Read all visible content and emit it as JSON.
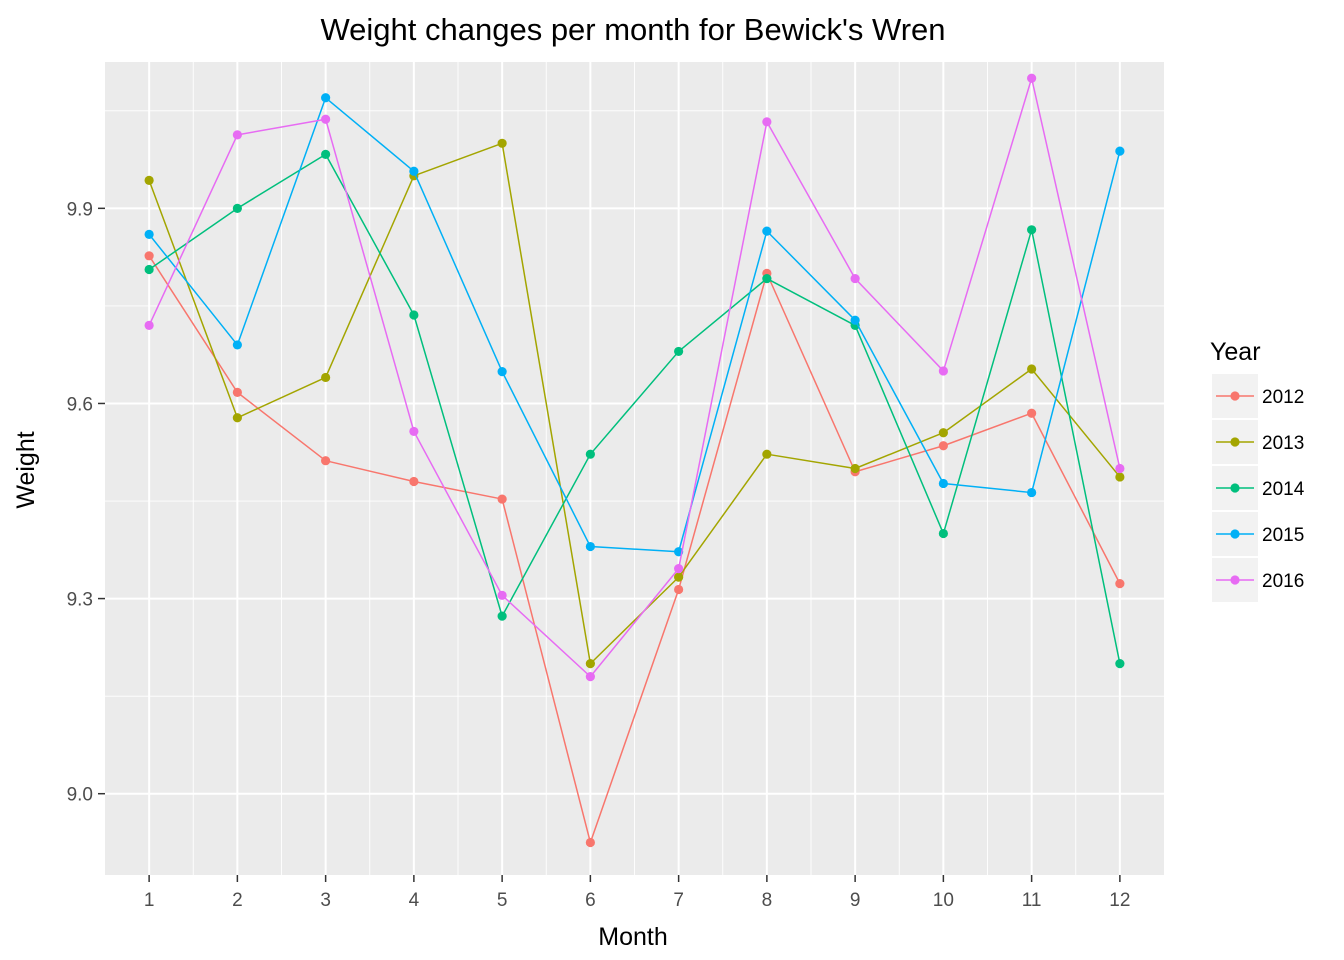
{
  "chart_data": {
    "type": "line",
    "title": "Weight changes per month for Bewick's Wren",
    "xlabel": "Month",
    "ylabel": "Weight",
    "x": [
      1,
      2,
      3,
      4,
      5,
      6,
      7,
      8,
      9,
      10,
      11,
      12
    ],
    "xticks": [
      "1",
      "2",
      "3",
      "4",
      "5",
      "6",
      "7",
      "8",
      "9",
      "10",
      "11",
      "12"
    ],
    "yticks": [
      9.0,
      9.3,
      9.6,
      9.9
    ],
    "ytick_labels": [
      "9.0",
      "9.3",
      "9.6",
      "9.9"
    ],
    "xlim": [
      0.5,
      12.5
    ],
    "ylim": [
      8.875,
      10.125
    ],
    "grid": true,
    "legend_title": "Year",
    "legend_position": "right",
    "series": [
      {
        "name": "2012",
        "color": "#F8766D",
        "values": [
          9.827,
          9.617,
          9.512,
          9.48,
          9.453,
          8.925,
          9.314,
          9.8,
          9.495,
          9.535,
          9.585,
          9.323
        ]
      },
      {
        "name": "2013",
        "color": "#A3A500",
        "values": [
          9.943,
          9.578,
          9.64,
          9.95,
          10.0,
          9.2,
          9.333,
          9.522,
          9.5,
          9.555,
          9.653,
          9.487
        ]
      },
      {
        "name": "2014",
        "color": "#00BF7D",
        "values": [
          9.806,
          9.9,
          9.983,
          9.736,
          9.273,
          9.522,
          9.68,
          9.792,
          9.72,
          9.4,
          9.867,
          9.2
        ]
      },
      {
        "name": "2015",
        "color": "#00B0F6",
        "values": [
          9.86,
          9.69,
          10.07,
          9.957,
          9.649,
          9.38,
          9.372,
          9.865,
          9.728,
          9.477,
          9.463,
          9.988
        ]
      },
      {
        "name": "2016",
        "color": "#E76BF3",
        "values": [
          9.72,
          10.013,
          10.037,
          9.557,
          9.305,
          9.18,
          9.346,
          10.033,
          9.792,
          9.65,
          10.1,
          9.5
        ]
      }
    ]
  }
}
